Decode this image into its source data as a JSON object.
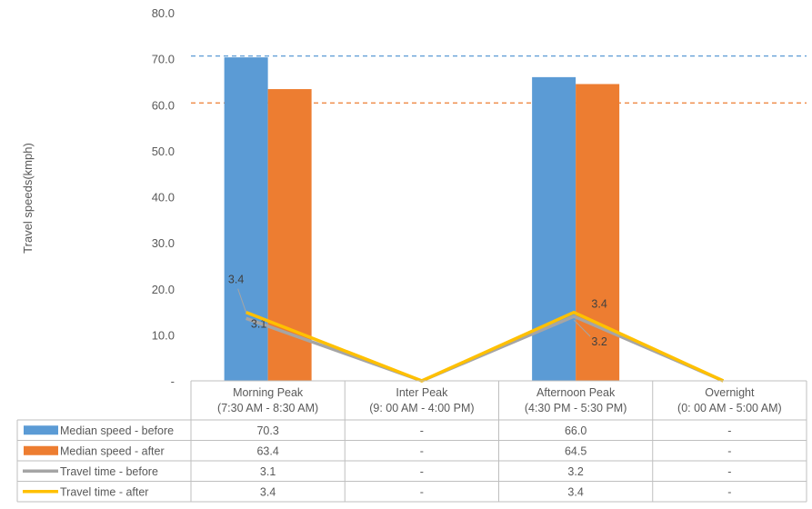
{
  "chart_data": {
    "type": "bar",
    "ylabel": "Travel speeds(kmph)",
    "ylim": [
      0,
      80
    ],
    "yticks": [
      {
        "value": 0,
        "label": "-"
      },
      {
        "value": 10,
        "label": "10.0"
      },
      {
        "value": 20,
        "label": "20.0"
      },
      {
        "value": 30,
        "label": "30.0"
      },
      {
        "value": 40,
        "label": "40.0"
      },
      {
        "value": 50,
        "label": "50.0"
      },
      {
        "value": 60,
        "label": "60.0"
      },
      {
        "value": 70,
        "label": "70.0"
      },
      {
        "value": 80,
        "label": "80.0"
      }
    ],
    "categories": [
      {
        "line1": "Morning Peak",
        "line2": "(7:30 AM - 8:30 AM)"
      },
      {
        "line1": "Inter Peak",
        "line2": "(9: 00 AM - 4:00 PM)"
      },
      {
        "line1": "Afternoon Peak",
        "line2": "(4:30 PM - 5:30 PM)"
      },
      {
        "line1": "Overnight",
        "line2": "(0: 00 AM - 5:00 AM)"
      }
    ],
    "bar_series": [
      {
        "name": "Median speed - before",
        "color": "#5B9BD5",
        "values": [
          70.3,
          null,
          66.0,
          null
        ],
        "table": [
          "70.3",
          "-",
          "66.0",
          "-"
        ]
      },
      {
        "name": "Median speed - after",
        "color": "#ED7D31",
        "values": [
          63.4,
          null,
          64.5,
          null
        ],
        "table": [
          "63.4",
          "-",
          "64.5",
          "-"
        ]
      }
    ],
    "line_series": [
      {
        "name": "Travel time - before",
        "color": "#A5A5A5",
        "values": [
          3.1,
          0,
          3.2,
          0
        ],
        "table": [
          "3.1",
          "-",
          "3.2",
          "-"
        ],
        "labels": [
          "3.1",
          "",
          "3.2",
          ""
        ]
      },
      {
        "name": "Travel time - after",
        "color": "#FFC000",
        "values": [
          3.4,
          0,
          3.4,
          0
        ],
        "table": [
          "3.4",
          "-",
          "3.4",
          "-"
        ],
        "labels": [
          "3.4",
          "",
          "3.4",
          ""
        ]
      }
    ],
    "reference_lines": [
      {
        "value": 70.6,
        "color": "#5B9BD5",
        "style": "dashed"
      },
      {
        "value": 60.4,
        "color": "#ED7D31",
        "style": "dashed"
      }
    ],
    "legend": "data-table",
    "grid": false
  }
}
